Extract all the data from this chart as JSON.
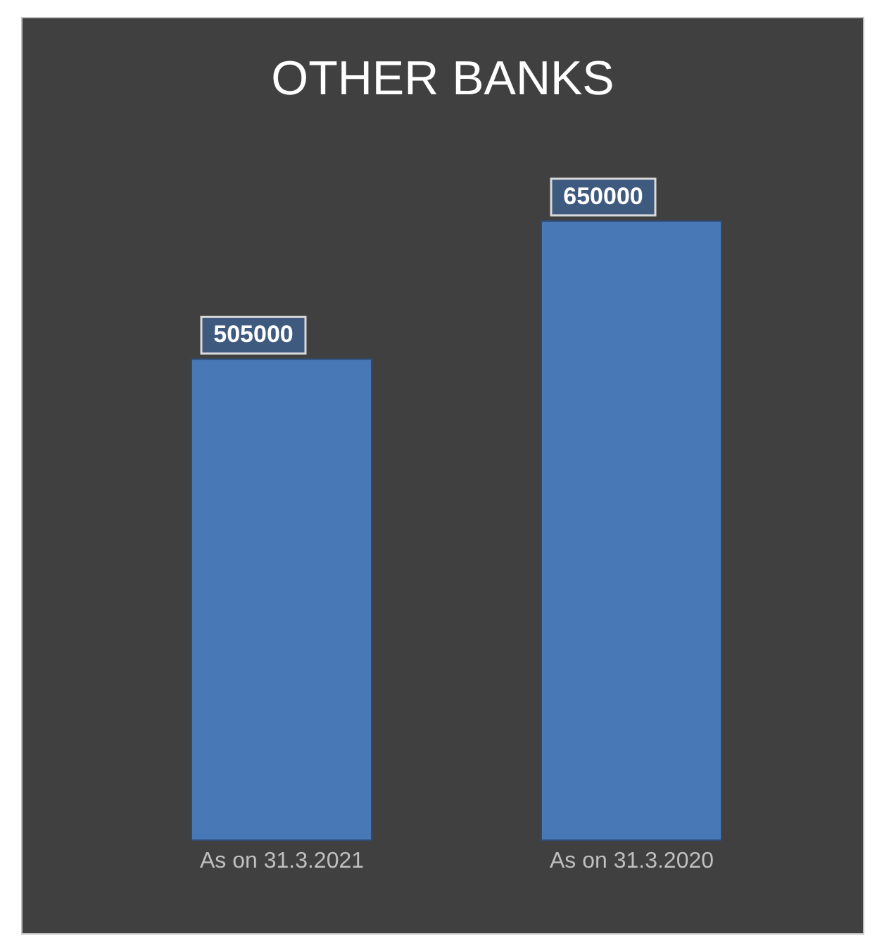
{
  "chart_data": {
    "type": "bar",
    "title": "OTHER BANKS",
    "categories": [
      "As on 31.3.2021",
      "As on 31.3.2020"
    ],
    "values": [
      505000,
      650000
    ],
    "color": "#4a7bbd",
    "data_labels": true
  }
}
